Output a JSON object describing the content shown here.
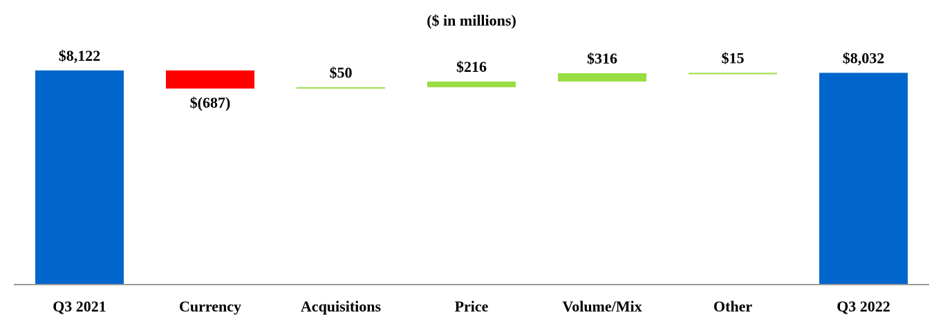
{
  "chart_data": {
    "type": "bar",
    "subtype": "waterfall",
    "title": "($ in millions)",
    "xlabel": "",
    "ylabel": "",
    "categories": [
      "Q3 2021",
      "Currency",
      "Acquisitions",
      "Price",
      "Volume/Mix",
      "Other",
      "Q3 2022"
    ],
    "values": [
      8122,
      -687,
      50,
      216,
      316,
      15,
      8032
    ],
    "value_labels": [
      "$8,122",
      "$(687)",
      "$50",
      "$216",
      "$316",
      "$15",
      "$8,032"
    ],
    "kinds": [
      "total",
      "delta",
      "delta",
      "delta",
      "delta",
      "delta",
      "total"
    ],
    "grid": false,
    "legend": "none",
    "colors": {
      "total": "#0066CC",
      "decrease": "#FF0000",
      "increase": "#99DD44",
      "axis": "#999999"
    }
  }
}
